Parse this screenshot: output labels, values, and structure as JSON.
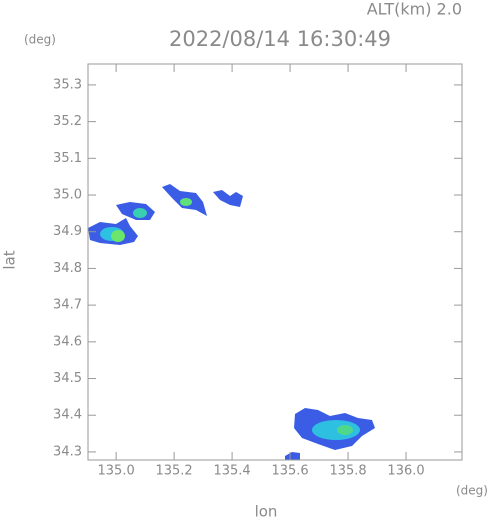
{
  "chart_data": {
    "type": "map",
    "title": "2022/08/14 16:30:49",
    "subtitle": "ALT(km) 2.0",
    "x_label": "lon",
    "y_label": "lat",
    "x_unit": "(deg)",
    "y_unit": "(deg)",
    "xlim": [
      134.903,
      136.193
    ],
    "ylim": [
      34.278,
      35.357
    ],
    "xticks": [
      {
        "value": 135.0,
        "label": "135.0"
      },
      135.2,
      135.4,
      135.6,
      135.8,
      {
        "value": 136.0,
        "label": "136.0"
      }
    ],
    "yticks": [
      34.3,
      34.4,
      34.5,
      34.6,
      34.7,
      34.8,
      34.9,
      {
        "value": 35.0,
        "label": "35.0"
      },
      35.1,
      35.2,
      35.3
    ]
  }
}
